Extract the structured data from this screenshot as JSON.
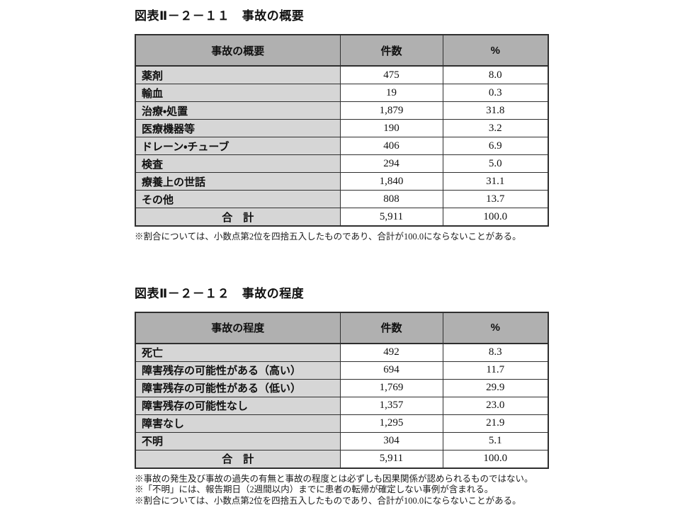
{
  "colors": {
    "header_bg": "#b0b0b0",
    "label_bg": "#d6d6d6",
    "border": "#2f2f2f",
    "page_bg": "#ffffff"
  },
  "tables": [
    {
      "title": "図表Ⅱ－２－１１　事故の概要",
      "columns": [
        "事故の概要",
        "件数",
        "%"
      ],
      "rows": [
        {
          "label": "薬剤",
          "count": "475",
          "percent": "8.0"
        },
        {
          "label": "輸血",
          "count": "19",
          "percent": "0.3"
        },
        {
          "label": "治療・処置",
          "count": "1,879",
          "percent": "31.8"
        },
        {
          "label": "医療機器等",
          "count": "190",
          "percent": "3.2"
        },
        {
          "label": "ドレーン・チューブ",
          "count": "406",
          "percent": "6.9"
        },
        {
          "label": "検査",
          "count": "294",
          "percent": "5.0"
        },
        {
          "label": "療養上の世話",
          "count": "1,840",
          "percent": "31.1"
        },
        {
          "label": "その他",
          "count": "808",
          "percent": "13.7"
        }
      ],
      "total": {
        "label": "合　計",
        "count": "5,911",
        "percent": "100.0"
      },
      "footnotes": [
        "※割合については、小数点第2位を四捨五入したものであり、合計が100.0にならないことがある。"
      ]
    },
    {
      "title": "図表Ⅱ－２－１２　事故の程度",
      "columns": [
        "事故の程度",
        "件数",
        "%"
      ],
      "rows": [
        {
          "label": "死亡",
          "count": "492",
          "percent": "8.3"
        },
        {
          "label": "障害残存の可能性がある（高い）",
          "count": "694",
          "percent": "11.7"
        },
        {
          "label": "障害残存の可能性がある（低い）",
          "count": "1,769",
          "percent": "29.9"
        },
        {
          "label": "障害残存の可能性なし",
          "count": "1,357",
          "percent": "23.0"
        },
        {
          "label": "障害なし",
          "count": "1,295",
          "percent": "21.9"
        },
        {
          "label": "不明",
          "count": "304",
          "percent": "5.1"
        }
      ],
      "total": {
        "label": "合　計",
        "count": "5,911",
        "percent": "100.0"
      },
      "footnotes": [
        "※事故の発生及び事故の過失の有無と事故の程度とは必ずしも因果関係が認められるものではない。",
        "※「不明」には、報告期日（2週間以内）までに患者の転帰が確定しない事例が含まれる。",
        "※割合については、小数点第2位を四捨五入したものであり、合計が100.0にならないことがある。"
      ]
    }
  ]
}
